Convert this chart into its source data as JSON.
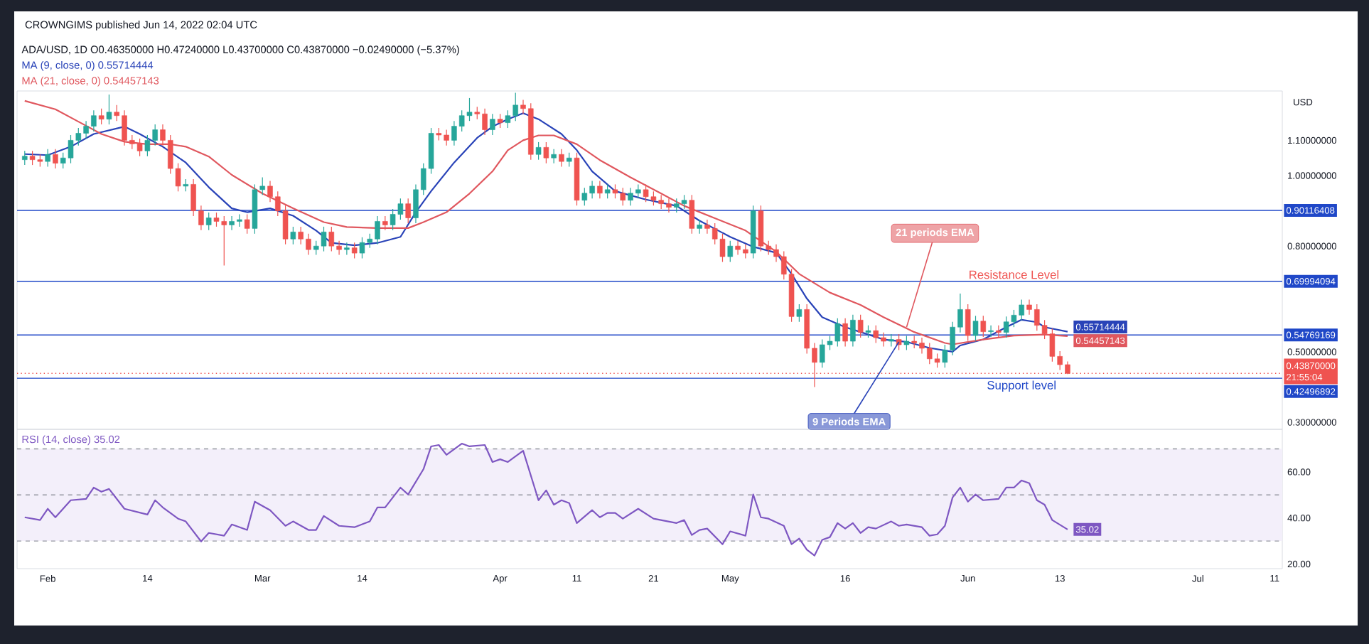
{
  "chart_data": [
    {
      "type": "candlestick",
      "title": "CROWNGIMS published Jun 14, 2022 02:04 UTC",
      "subtitle": "ADA/USD, 1D  O0.46350000 H0.47240000 L0.43700000 C0.43870000 −0.02490000 (−5.37%)",
      "ylabel": "USD",
      "xlim": [
        "2022-01-28",
        "2022-07-12"
      ],
      "ylim": [
        0.28,
        1.24
      ],
      "yticks": [
        {
          "value": 0.3,
          "label": "0.30000000"
        },
        {
          "value": 0.5,
          "label": "0.50000000"
        },
        {
          "value": 0.8,
          "label": "0.80000000"
        },
        {
          "value": 1.0,
          "label": "1.00000000"
        },
        {
          "value": 1.1,
          "label": "1.10000000"
        }
      ],
      "tick_labels": "y",
      "legend": "top left",
      "x": [
        "2022-01-29",
        "2022-01-30",
        "2022-01-31",
        "2022-02-01",
        "2022-02-02",
        "2022-02-03",
        "2022-02-04",
        "2022-02-05",
        "2022-02-06",
        "2022-02-07",
        "2022-02-08",
        "2022-02-09",
        "2022-02-10",
        "2022-02-11",
        "2022-02-12",
        "2022-02-13",
        "2022-02-14",
        "2022-02-15",
        "2022-02-16",
        "2022-02-17",
        "2022-02-18",
        "2022-02-19",
        "2022-02-20",
        "2022-02-21",
        "2022-02-22",
        "2022-02-23",
        "2022-02-24",
        "2022-02-25",
        "2022-02-26",
        "2022-02-27",
        "2022-02-28",
        "2022-03-01",
        "2022-03-02",
        "2022-03-03",
        "2022-03-04",
        "2022-03-05",
        "2022-03-06",
        "2022-03-07",
        "2022-03-08",
        "2022-03-09",
        "2022-03-10",
        "2022-03-11",
        "2022-03-12",
        "2022-03-13",
        "2022-03-14",
        "2022-03-15",
        "2022-03-16",
        "2022-03-17",
        "2022-03-18",
        "2022-03-19",
        "2022-03-20",
        "2022-03-21",
        "2022-03-22",
        "2022-03-23",
        "2022-03-24",
        "2022-03-25",
        "2022-03-26",
        "2022-03-27",
        "2022-03-28",
        "2022-03-29",
        "2022-03-30",
        "2022-03-31",
        "2022-04-01",
        "2022-04-02",
        "2022-04-03",
        "2022-04-04",
        "2022-04-05",
        "2022-04-06",
        "2022-04-07",
        "2022-04-08",
        "2022-04-09",
        "2022-04-10",
        "2022-04-11",
        "2022-04-12",
        "2022-04-13",
        "2022-04-14",
        "2022-04-15",
        "2022-04-16",
        "2022-04-17",
        "2022-04-18",
        "2022-04-19",
        "2022-04-20",
        "2022-04-21",
        "2022-04-22",
        "2022-04-23",
        "2022-04-24",
        "2022-04-25",
        "2022-04-26",
        "2022-04-27",
        "2022-04-28",
        "2022-04-29",
        "2022-04-30",
        "2022-05-01",
        "2022-05-02",
        "2022-05-03",
        "2022-05-04",
        "2022-05-05",
        "2022-05-06",
        "2022-05-07",
        "2022-05-08",
        "2022-05-09",
        "2022-05-10",
        "2022-05-11",
        "2022-05-12",
        "2022-05-13",
        "2022-05-14",
        "2022-05-15",
        "2022-05-16",
        "2022-05-17",
        "2022-05-18",
        "2022-05-19",
        "2022-05-20",
        "2022-05-21",
        "2022-05-22",
        "2022-05-23",
        "2022-05-24",
        "2022-05-25",
        "2022-05-26",
        "2022-05-27",
        "2022-05-28",
        "2022-05-29",
        "2022-05-30",
        "2022-05-31",
        "2022-06-01",
        "2022-06-02",
        "2022-06-03",
        "2022-06-04",
        "2022-06-05",
        "2022-06-06",
        "2022-06-07",
        "2022-06-08",
        "2022-06-09",
        "2022-06-10",
        "2022-06-11",
        "2022-06-12",
        "2022-06-13",
        "2022-06-14"
      ],
      "ohlc": [
        [
          1.045,
          1.07,
          1.03,
          1.055
        ],
        [
          1.055,
          1.07,
          1.03,
          1.045
        ],
        [
          1.045,
          1.06,
          1.025,
          1.04
        ],
        [
          1.04,
          1.075,
          1.025,
          1.06
        ],
        [
          1.06,
          1.075,
          1.02,
          1.035
        ],
        [
          1.035,
          1.065,
          1.02,
          1.05
        ],
        [
          1.05,
          1.115,
          1.035,
          1.1
        ],
        [
          1.1,
          1.135,
          1.085,
          1.12
        ],
        [
          1.12,
          1.155,
          1.105,
          1.14
        ],
        [
          1.14,
          1.185,
          1.125,
          1.17
        ],
        [
          1.17,
          1.19,
          1.145,
          1.16
        ],
        [
          1.16,
          1.23,
          1.145,
          1.18
        ],
        [
          1.18,
          1.2,
          1.155,
          1.17
        ],
        [
          1.17,
          1.185,
          1.085,
          1.1
        ],
        [
          1.1,
          1.115,
          1.075,
          1.09
        ],
        [
          1.09,
          1.105,
          1.055,
          1.07
        ],
        [
          1.07,
          1.115,
          1.055,
          1.1
        ],
        [
          1.1,
          1.145,
          1.085,
          1.13
        ],
        [
          1.13,
          1.145,
          1.085,
          1.1
        ],
        [
          1.1,
          1.115,
          1.005,
          1.02
        ],
        [
          1.02,
          1.035,
          0.955,
          0.97
        ],
        [
          0.97,
          0.99,
          0.955,
          0.975
        ],
        [
          0.975,
          0.99,
          0.885,
          0.9
        ],
        [
          0.9,
          0.915,
          0.845,
          0.86
        ],
        [
          0.86,
          0.895,
          0.845,
          0.88
        ],
        [
          0.88,
          0.895,
          0.855,
          0.87
        ],
        [
          0.87,
          0.885,
          0.745,
          0.86
        ],
        [
          0.86,
          0.885,
          0.845,
          0.87
        ],
        [
          0.87,
          0.89,
          0.855,
          0.875
        ],
        [
          0.875,
          0.89,
          0.835,
          0.85
        ],
        [
          0.85,
          0.975,
          0.835,
          0.96
        ],
        [
          0.96,
          0.995,
          0.945,
          0.97
        ],
        [
          0.97,
          0.985,
          0.925,
          0.94
        ],
        [
          0.94,
          0.955,
          0.885,
          0.9
        ],
        [
          0.9,
          0.915,
          0.805,
          0.82
        ],
        [
          0.82,
          0.855,
          0.805,
          0.84
        ],
        [
          0.84,
          0.855,
          0.805,
          0.82
        ],
        [
          0.82,
          0.835,
          0.775,
          0.79
        ],
        [
          0.79,
          0.815,
          0.775,
          0.8
        ],
        [
          0.8,
          0.855,
          0.785,
          0.84
        ],
        [
          0.84,
          0.855,
          0.785,
          0.8
        ],
        [
          0.8,
          0.815,
          0.775,
          0.79
        ],
        [
          0.79,
          0.81,
          0.775,
          0.795
        ],
        [
          0.795,
          0.81,
          0.765,
          0.78
        ],
        [
          0.78,
          0.825,
          0.765,
          0.81
        ],
        [
          0.81,
          0.835,
          0.795,
          0.82
        ],
        [
          0.82,
          0.885,
          0.805,
          0.87
        ],
        [
          0.87,
          0.885,
          0.845,
          0.86
        ],
        [
          0.86,
          0.905,
          0.845,
          0.89
        ],
        [
          0.89,
          0.935,
          0.875,
          0.92
        ],
        [
          0.92,
          0.935,
          0.865,
          0.88
        ],
        [
          0.88,
          0.975,
          0.865,
          0.96
        ],
        [
          0.96,
          1.035,
          0.945,
          1.02
        ],
        [
          1.02,
          1.135,
          1.005,
          1.12
        ],
        [
          1.12,
          1.135,
          1.1,
          1.115
        ],
        [
          1.115,
          1.13,
          1.085,
          1.1
        ],
        [
          1.1,
          1.155,
          1.085,
          1.14
        ],
        [
          1.14,
          1.185,
          1.125,
          1.17
        ],
        [
          1.17,
          1.22,
          1.155,
          1.18
        ],
        [
          1.18,
          1.195,
          1.16,
          1.175
        ],
        [
          1.175,
          1.19,
          1.115,
          1.13
        ],
        [
          1.13,
          1.175,
          1.115,
          1.16
        ],
        [
          1.16,
          1.175,
          1.135,
          1.15
        ],
        [
          1.15,
          1.185,
          1.135,
          1.17
        ],
        [
          1.17,
          1.235,
          1.155,
          1.2
        ],
        [
          1.2,
          1.215,
          1.175,
          1.19
        ],
        [
          1.19,
          1.205,
          1.045,
          1.06
        ],
        [
          1.06,
          1.095,
          1.045,
          1.08
        ],
        [
          1.08,
          1.095,
          1.035,
          1.05
        ],
        [
          1.05,
          1.075,
          1.035,
          1.06
        ],
        [
          1.06,
          1.075,
          1.025,
          1.04
        ],
        [
          1.04,
          1.065,
          1.025,
          1.05
        ],
        [
          1.05,
          1.065,
          0.915,
          0.93
        ],
        [
          0.93,
          0.965,
          0.915,
          0.95
        ],
        [
          0.95,
          0.985,
          0.935,
          0.97
        ],
        [
          0.97,
          0.985,
          0.935,
          0.95
        ],
        [
          0.95,
          0.975,
          0.935,
          0.96
        ],
        [
          0.96,
          0.975,
          0.935,
          0.95
        ],
        [
          0.95,
          0.965,
          0.915,
          0.93
        ],
        [
          0.93,
          0.965,
          0.915,
          0.95
        ],
        [
          0.95,
          0.975,
          0.935,
          0.96
        ],
        [
          0.96,
          0.975,
          0.925,
          0.94
        ],
        [
          0.94,
          0.955,
          0.915,
          0.93
        ],
        [
          0.93,
          0.945,
          0.905,
          0.92
        ],
        [
          0.92,
          0.935,
          0.895,
          0.91
        ],
        [
          0.91,
          0.935,
          0.895,
          0.92
        ],
        [
          0.92,
          0.945,
          0.905,
          0.93
        ],
        [
          0.93,
          0.945,
          0.835,
          0.85
        ],
        [
          0.85,
          0.875,
          0.835,
          0.86
        ],
        [
          0.86,
          0.875,
          0.835,
          0.85
        ],
        [
          0.85,
          0.865,
          0.805,
          0.82
        ],
        [
          0.82,
          0.835,
          0.755,
          0.77
        ],
        [
          0.77,
          0.815,
          0.755,
          0.8
        ],
        [
          0.8,
          0.815,
          0.775,
          0.79
        ],
        [
          0.79,
          0.805,
          0.765,
          0.78
        ],
        [
          0.78,
          0.915,
          0.765,
          0.9
        ],
        [
          0.9,
          0.915,
          0.785,
          0.8
        ],
        [
          0.8,
          0.815,
          0.775,
          0.79
        ],
        [
          0.79,
          0.805,
          0.755,
          0.77
        ],
        [
          0.77,
          0.785,
          0.705,
          0.72
        ],
        [
          0.72,
          0.735,
          0.585,
          0.6
        ],
        [
          0.6,
          0.635,
          0.585,
          0.62
        ],
        [
          0.62,
          0.635,
          0.495,
          0.51
        ],
        [
          0.51,
          0.525,
          0.4,
          0.47
        ],
        [
          0.47,
          0.535,
          0.455,
          0.52
        ],
        [
          0.52,
          0.545,
          0.505,
          0.53
        ],
        [
          0.53,
          0.595,
          0.515,
          0.58
        ],
        [
          0.58,
          0.595,
          0.515,
          0.53
        ],
        [
          0.53,
          0.605,
          0.515,
          0.59
        ],
        [
          0.59,
          0.605,
          0.54,
          0.555
        ],
        [
          0.555,
          0.575,
          0.54,
          0.56
        ],
        [
          0.56,
          0.575,
          0.525,
          0.54
        ],
        [
          0.54,
          0.555,
          0.515,
          0.53
        ],
        [
          0.53,
          0.55,
          0.515,
          0.535
        ],
        [
          0.535,
          0.55,
          0.505,
          0.52
        ],
        [
          0.52,
          0.545,
          0.505,
          0.53
        ],
        [
          0.53,
          0.545,
          0.51,
          0.525
        ],
        [
          0.525,
          0.54,
          0.495,
          0.51
        ],
        [
          0.51,
          0.525,
          0.465,
          0.48
        ],
        [
          0.48,
          0.495,
          0.455,
          0.47
        ],
        [
          0.47,
          0.52,
          0.455,
          0.505
        ],
        [
          0.505,
          0.585,
          0.49,
          0.57
        ],
        [
          0.57,
          0.665,
          0.555,
          0.62
        ],
        [
          0.62,
          0.635,
          0.531,
          0.546
        ],
        [
          0.546,
          0.602,
          0.531,
          0.587
        ],
        [
          0.587,
          0.602,
          0.542,
          0.557
        ],
        [
          0.557,
          0.575,
          0.542,
          0.56
        ],
        [
          0.56,
          0.575,
          0.54,
          0.555
        ],
        [
          0.555,
          0.6,
          0.54,
          0.585
        ],
        [
          0.585,
          0.619,
          0.57,
          0.604
        ],
        [
          0.604,
          0.648,
          0.589,
          0.633
        ],
        [
          0.633,
          0.648,
          0.605,
          0.62
        ],
        [
          0.62,
          0.635,
          0.56,
          0.575
        ],
        [
          0.575,
          0.59,
          0.536,
          0.551
        ],
        [
          0.551,
          0.566,
          0.472,
          0.487
        ],
        [
          0.487,
          0.502,
          0.4485,
          0.4635
        ],
        [
          0.4635,
          0.4724,
          0.437,
          0.4387
        ]
      ],
      "colors": [
        "#26a69a",
        "#ef5350",
        "#ef5350",
        "#26a69a",
        "#ef5350",
        "#26a69a",
        "#26a69a",
        "#26a69a",
        "#26a69a",
        "#26a69a",
        "#ef5350",
        "#26a69a",
        "#ef5350",
        "#ef5350",
        "#ef5350",
        "#ef5350",
        "#26a69a",
        "#26a69a",
        "#ef5350",
        "#ef5350",
        "#ef5350",
        "#26a69a",
        "#ef5350",
        "#ef5350",
        "#26a69a",
        "#ef5350",
        "#ef5350",
        "#26a69a",
        "#26a69a",
        "#ef5350",
        "#26a69a",
        "#26a69a",
        "#ef5350",
        "#ef5350",
        "#ef5350",
        "#26a69a",
        "#ef5350",
        "#ef5350",
        "#26a69a",
        "#26a69a",
        "#ef5350",
        "#ef5350",
        "#26a69a",
        "#ef5350",
        "#26a69a",
        "#26a69a",
        "#26a69a",
        "#ef5350",
        "#26a69a",
        "#26a69a",
        "#ef5350",
        "#26a69a",
        "#26a69a",
        "#26a69a",
        "#ef5350",
        "#ef5350",
        "#26a69a",
        "#26a69a",
        "#26a69a",
        "#ef5350",
        "#ef5350",
        "#26a69a",
        "#ef5350",
        "#26a69a",
        "#26a69a",
        "#ef5350",
        "#ef5350",
        "#26a69a",
        "#ef5350",
        "#26a69a",
        "#ef5350",
        "#26a69a",
        "#ef5350",
        "#26a69a",
        "#26a69a",
        "#ef5350",
        "#26a69a",
        "#ef5350",
        "#ef5350",
        "#26a69a",
        "#26a69a",
        "#ef5350",
        "#ef5350",
        "#ef5350",
        "#ef5350",
        "#26a69a",
        "#26a69a",
        "#ef5350",
        "#26a69a",
        "#ef5350",
        "#ef5350",
        "#ef5350",
        "#26a69a",
        "#ef5350",
        "#ef5350",
        "#26a69a",
        "#ef5350",
        "#ef5350",
        "#ef5350",
        "#ef5350",
        "#ef5350",
        "#26a69a",
        "#ef5350",
        "#ef5350",
        "#26a69a",
        "#26a69a",
        "#26a69a",
        "#ef5350",
        "#26a69a",
        "#ef5350",
        "#26a69a",
        "#ef5350",
        "#ef5350",
        "#26a69a",
        "#ef5350",
        "#26a69a",
        "#ef5350",
        "#ef5350",
        "#ef5350",
        "#ef5350",
        "#26a69a",
        "#26a69a",
        "#26a69a",
        "#ef5350",
        "#26a69a",
        "#ef5350",
        "#26a69a",
        "#ef5350",
        "#26a69a",
        "#26a69a",
        "#26a69a",
        "#ef5350",
        "#ef5350",
        "#ef5350",
        "#ef5350",
        "#ef5350",
        "#ef5350"
      ],
      "series": [
        {
          "type": "line",
          "name": "MA (9, close, 0)",
          "color": "#2943b8",
          "x": [
            "2022-01-29",
            "2022-02-01",
            "2022-02-04",
            "2022-02-07",
            "2022-02-11",
            "2022-02-13",
            "2022-02-16",
            "2022-02-19",
            "2022-02-22",
            "2022-02-25",
            "2022-02-27",
            "2022-03-02",
            "2022-03-05",
            "2022-03-08",
            "2022-03-10",
            "2022-03-13",
            "2022-03-16",
            "2022-03-19",
            "2022-03-21",
            "2022-03-23",
            "2022-03-26",
            "2022-03-29",
            "2022-03-31",
            "2022-04-02",
            "2022-04-04",
            "2022-04-06",
            "2022-04-09",
            "2022-04-11",
            "2022-04-13",
            "2022-04-16",
            "2022-04-20",
            "2022-04-24",
            "2022-04-27",
            "2022-05-01",
            "2022-05-04",
            "2022-05-07",
            "2022-05-09",
            "2022-05-11",
            "2022-05-13",
            "2022-05-16",
            "2022-05-18",
            "2022-05-21",
            "2022-05-24",
            "2022-05-27",
            "2022-05-30",
            "2022-05-31",
            "2022-06-03",
            "2022-06-06",
            "2022-06-08",
            "2022-06-10",
            "2022-06-11",
            "2022-06-14"
          ],
          "values": [
            1.061,
            1.058,
            1.082,
            1.118,
            1.139,
            1.118,
            1.082,
            1.037,
            0.967,
            0.907,
            0.896,
            0.907,
            0.886,
            0.844,
            0.809,
            0.802,
            0.809,
            0.826,
            0.896,
            0.956,
            1.037,
            1.107,
            1.139,
            1.16,
            1.177,
            1.16,
            1.118,
            1.072,
            1.012,
            0.956,
            0.932,
            0.914,
            0.872,
            0.826,
            0.798,
            0.781,
            0.721,
            0.651,
            0.598,
            0.57,
            0.556,
            0.535,
            0.528,
            0.511,
            0.5,
            0.518,
            0.535,
            0.57,
            0.591,
            0.584,
            0.57,
            0.55714444
          ],
          "value_labels": [
            null,
            null,
            null,
            null,
            null,
            null,
            null,
            null,
            null,
            null,
            null,
            null,
            null,
            null,
            null,
            null,
            null,
            null,
            null,
            null,
            null,
            null,
            null,
            null,
            null,
            null,
            null,
            null,
            null,
            null,
            null,
            null,
            null,
            null,
            null,
            null,
            null,
            null,
            null,
            null,
            null,
            null,
            null,
            null,
            null,
            null,
            null,
            null,
            null,
            null,
            null,
            "0.55714444"
          ]
        },
        {
          "type": "line",
          "name": "MA (21, close, 0)",
          "color": "#e0575e",
          "x": [
            "2022-01-29",
            "2022-02-02",
            "2022-02-05",
            "2022-02-08",
            "2022-02-11",
            "2022-02-14",
            "2022-02-17",
            "2022-02-19",
            "2022-02-22",
            "2022-02-25",
            "2022-03-01",
            "2022-03-05",
            "2022-03-09",
            "2022-03-12",
            "2022-03-16",
            "2022-03-20",
            "2022-03-22",
            "2022-03-25",
            "2022-03-28",
            "2022-03-31",
            "2022-04-02",
            "2022-04-04",
            "2022-04-06",
            "2022-04-08",
            "2022-04-11",
            "2022-04-14",
            "2022-04-18",
            "2022-04-22",
            "2022-04-25",
            "2022-04-29",
            "2022-05-03",
            "2022-05-07",
            "2022-05-10",
            "2022-05-14",
            "2022-05-18",
            "2022-05-21",
            "2022-05-25",
            "2022-05-29",
            "2022-05-30",
            "2022-06-03",
            "2022-06-07",
            "2022-06-11",
            "2022-06-14"
          ],
          "values": [
            1.212,
            1.188,
            1.153,
            1.118,
            1.096,
            1.089,
            1.089,
            1.082,
            1.054,
            1.002,
            0.949,
            0.907,
            0.868,
            0.854,
            0.851,
            0.851,
            0.868,
            0.896,
            0.949,
            1.012,
            1.072,
            1.1,
            1.114,
            1.114,
            1.089,
            1.044,
            0.995,
            0.949,
            0.914,
            0.879,
            0.844,
            0.784,
            0.721,
            0.668,
            0.633,
            0.598,
            0.556,
            0.525,
            0.521,
            0.535,
            0.546,
            0.549,
            0.54457143
          ],
          "value_labels": [
            null,
            null,
            null,
            null,
            null,
            null,
            null,
            null,
            null,
            null,
            null,
            null,
            null,
            null,
            null,
            null,
            null,
            null,
            null,
            null,
            null,
            null,
            null,
            null,
            null,
            null,
            null,
            null,
            null,
            null,
            null,
            null,
            null,
            null,
            null,
            null,
            null,
            null,
            null,
            null,
            null,
            null,
            "0.54457143"
          ]
        }
      ],
      "ref_lines": [
        {
          "axis": "y",
          "value": 0.90116408,
          "label": "0.90116408",
          "color": "#2048c8",
          "line_style": "solid"
        },
        {
          "axis": "y",
          "value": 0.69994094,
          "label": "0.69994094",
          "color": "#2048c8",
          "line_style": "solid"
        },
        {
          "axis": "y",
          "value": 0.54769169,
          "label": "0.54769169",
          "color": "#2048c8",
          "line_style": "solid"
        },
        {
          "axis": "y",
          "value": 0.42496892,
          "label": "0.42496892",
          "color": "#2048c8",
          "line_style": "solid"
        },
        {
          "axis": "y",
          "value": 0.4387,
          "label": "0.43870000",
          "color": "#ef5350",
          "line_style": "dotted"
        }
      ],
      "annotations": [
        {
          "text": "21 periods EMA",
          "x": "2022-05-24",
          "y": 0.57
        },
        {
          "text": "9 Periods EMA",
          "x": "2022-05-23",
          "y": 0.528
        },
        {
          "text": "Resistance Level",
          "x": "2022-06-07",
          "y": 0.69994094
        },
        {
          "text": "Support level",
          "x": "2022-06-08",
          "y": 0.42496892
        },
        "21:55:04"
      ]
    },
    {
      "type": "line",
      "xlim": [
        "2022-01-28",
        "2022-07-12"
      ],
      "ylim": [
        18,
        78.5
      ],
      "yticks": [
        {
          "value": 20,
          "label": "20.00"
        },
        {
          "value": 40,
          "label": "40.00"
        },
        {
          "value": 60,
          "label": "60.00"
        }
      ],
      "xticks": [
        {
          "value": "2022-02-01",
          "label": "Feb"
        },
        {
          "value": "2022-02-14",
          "label": "14"
        },
        {
          "value": "2022-03-01",
          "label": "Mar"
        },
        {
          "value": "2022-03-14",
          "label": "14"
        },
        {
          "value": "2022-04-01",
          "label": "Apr"
        },
        {
          "value": "2022-04-11",
          "label": "11"
        },
        {
          "value": "2022-04-21",
          "label": "21"
        },
        {
          "value": "2022-05-01",
          "label": "May"
        },
        {
          "value": "2022-05-16",
          "label": "16"
        },
        {
          "value": "2022-06-01",
          "label": "Jun"
        },
        {
          "value": "2022-06-13",
          "label": "13"
        },
        {
          "value": "2022-07-01",
          "label": "Jul"
        },
        {
          "value": "2022-07-11",
          "label": "11"
        }
      ],
      "legend": "top left",
      "series": [
        {
          "name": "RSI (14, close)",
          "color": "#7e57c2",
          "x": [
            "2022-01-29",
            "2022-01-31",
            "2022-02-01",
            "2022-02-02",
            "2022-02-04",
            "2022-02-06",
            "2022-02-07",
            "2022-02-08",
            "2022-02-09",
            "2022-02-11",
            "2022-02-14",
            "2022-02-15",
            "2022-02-16",
            "2022-02-18",
            "2022-02-19",
            "2022-02-21",
            "2022-02-22",
            "2022-02-24",
            "2022-02-25",
            "2022-02-27",
            "2022-02-28",
            "2022-03-02",
            "2022-03-04",
            "2022-03-05",
            "2022-03-07",
            "2022-03-08",
            "2022-03-09",
            "2022-03-11",
            "2022-03-13",
            "2022-03-15",
            "2022-03-16",
            "2022-03-17",
            "2022-03-19",
            "2022-03-20",
            "2022-03-22",
            "2022-03-23",
            "2022-03-24",
            "2022-03-25",
            "2022-03-27",
            "2022-03-28",
            "2022-03-30",
            "2022-03-31",
            "2022-04-01",
            "2022-04-02",
            "2022-04-04",
            "2022-04-06",
            "2022-04-07",
            "2022-04-08",
            "2022-04-09",
            "2022-04-10",
            "2022-04-11",
            "2022-04-13",
            "2022-04-14",
            "2022-04-15",
            "2022-04-16",
            "2022-04-17",
            "2022-04-19",
            "2022-04-21",
            "2022-04-24",
            "2022-04-25",
            "2022-04-26",
            "2022-04-27",
            "2022-04-28",
            "2022-04-30",
            "2022-05-01",
            "2022-05-03",
            "2022-05-04",
            "2022-05-05",
            "2022-05-06",
            "2022-05-08",
            "2022-05-09",
            "2022-05-10",
            "2022-05-11",
            "2022-05-12",
            "2022-05-13",
            "2022-05-14",
            "2022-05-15",
            "2022-05-16",
            "2022-05-17",
            "2022-05-18",
            "2022-05-19",
            "2022-05-20",
            "2022-05-22",
            "2022-05-23",
            "2022-05-24",
            "2022-05-26",
            "2022-05-27",
            "2022-05-28",
            "2022-05-29",
            "2022-05-30",
            "2022-05-31",
            "2022-06-01",
            "2022-06-02",
            "2022-06-03",
            "2022-06-05",
            "2022-06-06",
            "2022-06-07",
            "2022-06-08",
            "2022-06-09",
            "2022-06-10",
            "2022-06-11",
            "2022-06-12",
            "2022-06-14"
          ],
          "values": [
            40.3,
            39.1,
            44,
            40.3,
            47.7,
            48.3,
            53.2,
            51.4,
            52.6,
            44,
            41.5,
            47.7,
            44.6,
            39.7,
            38.5,
            29.8,
            33.5,
            32.3,
            37.2,
            34.8,
            47.1,
            43.4,
            36.6,
            38.5,
            34.8,
            34.8,
            40.9,
            36.6,
            36,
            38.5,
            44.6,
            44.6,
            53.2,
            50.2,
            61.2,
            71.1,
            71.7,
            67.4,
            72.3,
            71.1,
            71.7,
            64.3,
            65.5,
            64.3,
            69.2,
            47.7,
            52,
            45.8,
            47.7,
            46.5,
            37.8,
            43.4,
            40.3,
            42.2,
            42.2,
            39.7,
            44,
            39.7,
            37.8,
            39.1,
            32.6,
            34.8,
            35.4,
            28.6,
            34.2,
            32.3,
            50.2,
            40.3,
            39.7,
            36.6,
            28.6,
            31.1,
            26.2,
            23.7,
            30.5,
            31.7,
            37.8,
            35.4,
            37.8,
            33.5,
            36,
            35.4,
            38.5,
            36.6,
            37.2,
            36,
            32.3,
            32.9,
            36.6,
            48.9,
            53.2,
            47.1,
            50.2,
            47.7,
            48.3,
            53.2,
            53.2,
            56.3,
            55.1,
            47.7,
            45.8,
            39.1,
            35.02
          ],
          "value_labels": [
            null,
            null,
            null,
            null,
            null,
            null,
            null,
            null,
            null,
            null,
            null,
            null,
            null,
            null,
            null,
            null,
            null,
            null,
            null,
            null,
            null,
            null,
            null,
            null,
            null,
            null,
            null,
            null,
            null,
            null,
            null,
            null,
            null,
            null,
            null,
            null,
            null,
            null,
            null,
            null,
            null,
            null,
            null,
            null,
            null,
            null,
            null,
            null,
            null,
            null,
            null,
            null,
            null,
            null,
            null,
            null,
            null,
            null,
            null,
            null,
            null,
            null,
            null,
            null,
            null,
            null,
            null,
            null,
            null,
            null,
            null,
            null,
            null,
            null,
            null,
            null,
            null,
            null,
            null,
            null,
            null,
            null,
            null,
            null,
            null,
            null,
            null,
            null,
            null,
            null,
            null,
            null,
            null,
            null,
            null,
            null,
            null,
            null,
            null,
            null,
            null,
            null,
            "35.02"
          ]
        }
      ],
      "ref_lines": [
        {
          "axis": "y",
          "value": 70,
          "color": "#9598a1",
          "line_style": "dashed"
        },
        {
          "axis": "y",
          "value": 50,
          "color": "#9598a1",
          "line_style": "dashed"
        },
        {
          "axis": "y",
          "value": 30,
          "color": "#9598a1",
          "line_style": "dashed"
        }
      ],
      "bands": [
        {
          "axis": "y",
          "from": 30,
          "to": 70,
          "color": "#f3effa"
        }
      ]
    }
  ]
}
